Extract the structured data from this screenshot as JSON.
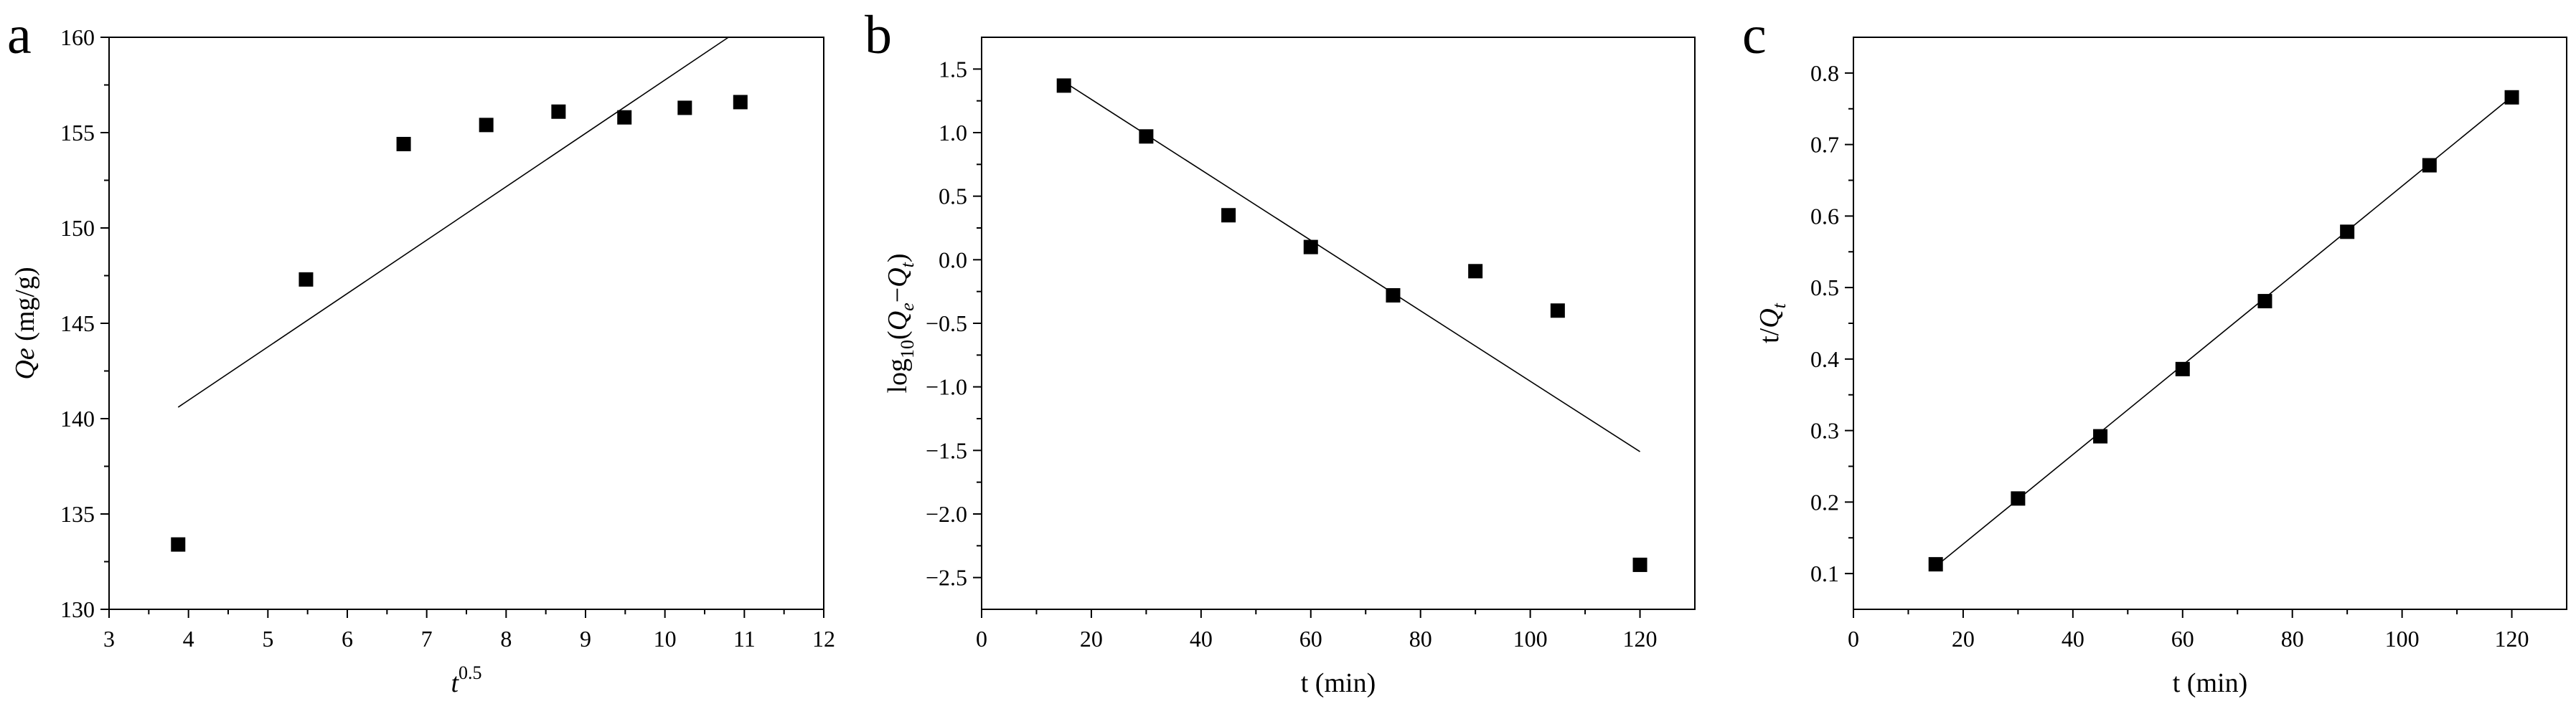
{
  "chart_data": [
    {
      "panel": "a",
      "type": "scatter",
      "xlabel": "t",
      "xlabel_sup": "0.5",
      "ylabel": "Qe",
      "ylabel_unit": " (mg/g)",
      "xlim": [
        3,
        12
      ],
      "ylim": [
        130,
        160
      ],
      "xticks": [
        3,
        4,
        5,
        6,
        7,
        8,
        9,
        10,
        11,
        12
      ],
      "yticks": [
        130,
        135,
        140,
        145,
        150,
        155,
        160
      ],
      "grid": false,
      "points": [
        {
          "x": 3.87,
          "y": 133.4
        },
        {
          "x": 5.48,
          "y": 147.3
        },
        {
          "x": 6.71,
          "y": 154.4
        },
        {
          "x": 7.75,
          "y": 155.4
        },
        {
          "x": 8.66,
          "y": 156.1
        },
        {
          "x": 9.49,
          "y": 155.8
        },
        {
          "x": 10.25,
          "y": 156.3
        },
        {
          "x": 10.95,
          "y": 156.6
        }
      ],
      "fit_line": {
        "x": [
          3.87,
          10.8
        ],
        "y": [
          140.6,
          160.0
        ]
      }
    },
    {
      "panel": "b",
      "type": "scatter",
      "xlabel": "t (min)",
      "ylabel_parts": [
        "log",
        "10",
        "(Q",
        "e",
        "−Q",
        "t",
        ")"
      ],
      "xlim": [
        0,
        130
      ],
      "ylim": [
        -2.75,
        1.75
      ],
      "xticks": [
        0,
        20,
        40,
        60,
        80,
        100,
        120
      ],
      "yticks": [
        -2.5,
        -2.0,
        -1.5,
        -1.0,
        -0.5,
        0.0,
        0.5,
        1.0,
        1.5
      ],
      "ytick_labels": [
        "−2.5",
        "−2.0",
        "−1.5",
        "−1.0",
        "−0.5",
        "0.0",
        "0.5",
        "1.0",
        "1.5"
      ],
      "grid": false,
      "points": [
        {
          "x": 15,
          "y": 1.37
        },
        {
          "x": 30,
          "y": 0.97
        },
        {
          "x": 45,
          "y": 0.35
        },
        {
          "x": 60,
          "y": 0.1
        },
        {
          "x": 75,
          "y": -0.28
        },
        {
          "x": 90,
          "y": -0.09
        },
        {
          "x": 105,
          "y": -0.4
        },
        {
          "x": 120,
          "y": -2.4
        }
      ],
      "fit_line": {
        "x": [
          15,
          120
        ],
        "y": [
          1.4,
          -1.51
        ]
      }
    },
    {
      "panel": "c",
      "type": "scatter",
      "xlabel": "t (min)",
      "ylabel_parts": [
        "t/Q",
        "t"
      ],
      "xlim": [
        0,
        130
      ],
      "ylim": [
        0.05,
        0.85
      ],
      "xticks": [
        0,
        20,
        40,
        60,
        80,
        100,
        120
      ],
      "yticks": [
        0.1,
        0.2,
        0.3,
        0.4,
        0.5,
        0.6,
        0.7,
        0.8
      ],
      "grid": false,
      "points": [
        {
          "x": 15,
          "y": 0.113
        },
        {
          "x": 30,
          "y": 0.205
        },
        {
          "x": 45,
          "y": 0.292
        },
        {
          "x": 60,
          "y": 0.386
        },
        {
          "x": 75,
          "y": 0.481
        },
        {
          "x": 90,
          "y": 0.578
        },
        {
          "x": 105,
          "y": 0.671
        },
        {
          "x": 120,
          "y": 0.766
        }
      ],
      "fit_line": {
        "x": [
          15,
          120
        ],
        "y": [
          0.11,
          0.767
        ]
      }
    }
  ]
}
